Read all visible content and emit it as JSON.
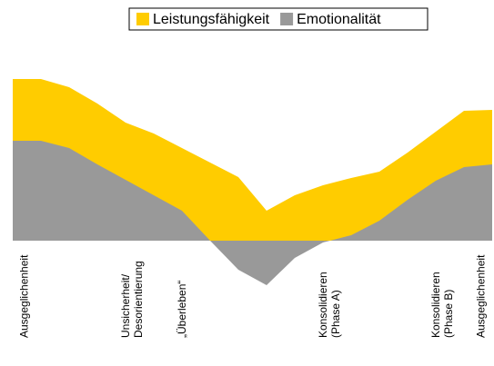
{
  "chart_data": {
    "type": "area",
    "categories": [
      "Ausgeglichenheit",
      null,
      null,
      null,
      "Unsicherheit/\nDesorientierung",
      null,
      "„Überleben“",
      null,
      null,
      null,
      null,
      "Konsolidieren\n(Phase A)",
      null,
      null,
      null,
      "Konsolidieren\n(Phase B)",
      null,
      "Ausgeglichenheit"
    ],
    "series": [
      {
        "name": "Leistungsfähigkeit",
        "color": "#ffcc00",
        "values": [
          178,
          178,
          169,
          151,
          130,
          118,
          102,
          86,
          70,
          33,
          50,
          61,
          69,
          76,
          97,
          120,
          143,
          144
        ]
      },
      {
        "name": "Emotionalität",
        "color": "#999999",
        "values": [
          110,
          110,
          102,
          84,
          67,
          50,
          33,
          0,
          -32,
          -49,
          -19,
          -2,
          6,
          22,
          45,
          66,
          81,
          84
        ]
      }
    ],
    "ylim": [
      -60,
      200
    ]
  }
}
